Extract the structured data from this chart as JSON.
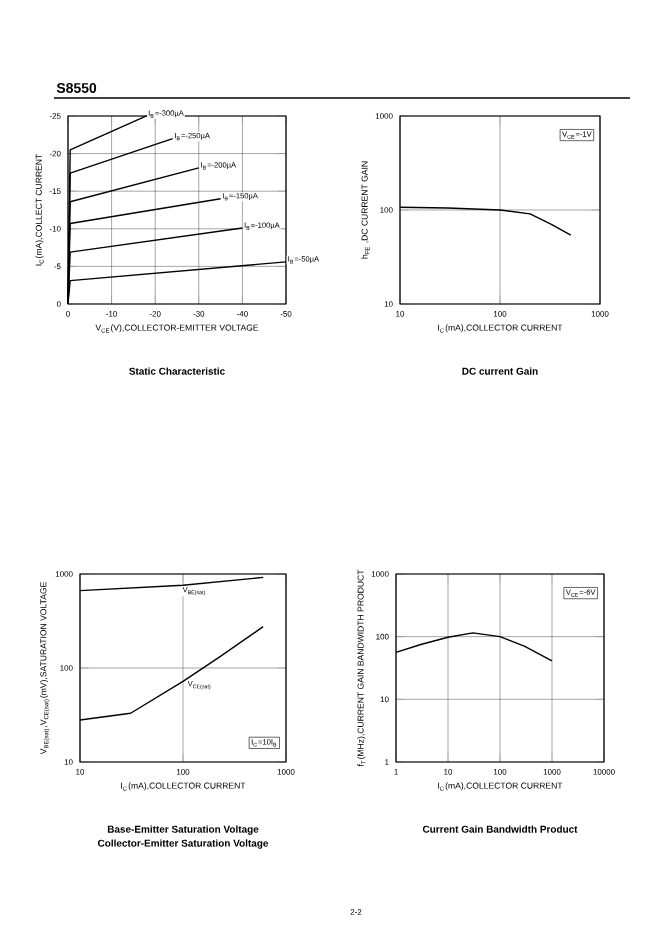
{
  "chart_data": [
    {
      "type": "line",
      "title": "Static Characteristic",
      "xlabel": "V$_{CE}$(V),COLLECTOR-EMITTER VOLTAGE",
      "ylabel": "I$_{C}$(mA),COLLECT CURRENT",
      "xlim": [
        0,
        -50
      ],
      "xticks": [
        0,
        -10,
        -20,
        -30,
        -40,
        -50
      ],
      "ylim": [
        0,
        -25
      ],
      "yticks": [
        0,
        -5,
        -10,
        -15,
        -20,
        -25
      ],
      "grid": true,
      "annotations": [
        "S8550"
      ],
      "series": [
        {
          "name": "I$_{B}$=-300µA",
          "color": "#000000",
          "x": [
            0,
            -0.5,
            -18
          ],
          "values": [
            0,
            -20.5,
            -25
          ]
        },
        {
          "name": "I$_{B}$=-250µA",
          "color": "#000000",
          "x": [
            0,
            -0.5,
            -24
          ],
          "values": [
            0,
            -17.4,
            -22
          ]
        },
        {
          "name": "I$_{B}$=-200µA",
          "color": "#000000",
          "x": [
            0,
            -0.5,
            -30
          ],
          "values": [
            0,
            -13.6,
            -18.1
          ]
        },
        {
          "name": "I$_{B}$=-150µA",
          "color": "#000000",
          "x": [
            0,
            -0.5,
            -35
          ],
          "values": [
            0,
            -10.7,
            -14
          ]
        },
        {
          "name": "I$_{B}$=-100µA",
          "color": "#000000",
          "x": [
            0,
            -0.5,
            -40
          ],
          "values": [
            0,
            -6.9,
            -10.1
          ]
        },
        {
          "name": "I$_{B}$=-50µA",
          "color": "#000000",
          "x": [
            0,
            -0.5,
            -50
          ],
          "values": [
            0,
            -3.1,
            -5.6
          ]
        }
      ]
    },
    {
      "type": "line",
      "title": "DC current Gain",
      "xlabel": "I$_{C}$(mA),COLLECTOR CURRENT",
      "ylabel": "h$_{FE}$ ,DC CURRENT GAIN",
      "log": "xy",
      "xlim": [
        10,
        1000
      ],
      "xticks": [
        10,
        100,
        1000
      ],
      "ylim": [
        10,
        1000
      ],
      "yticks": [
        10,
        100,
        1000
      ],
      "grid": true,
      "annotations": [
        "V$_{CE}$=-1V"
      ],
      "series": [
        {
          "color": "#000000",
          "x": [
            10,
            30,
            100,
            200,
            330,
            510
          ],
          "values": [
            107,
            105,
            100,
            91,
            70,
            54
          ]
        }
      ]
    },
    {
      "type": "line",
      "title": "Base-Emitter Saturation Voltage",
      "subtitle": "Collector-Emitter Saturation Voltage",
      "xlabel": "I$_{C}$(mA),COLLECTOR CURRENT",
      "ylabel": "V$_{BE(sat)}$,V$_{CE(sat)}$(mV),SATURATION VOLTAGE",
      "log": "xy",
      "xlim": [
        10,
        1000
      ],
      "xticks": [
        10,
        100,
        1000
      ],
      "ylim": [
        10,
        1000
      ],
      "yticks": [
        10,
        100,
        1000
      ],
      "grid": true,
      "annotations": [
        "I$_{C}$=10I$_{B}$"
      ],
      "series": [
        {
          "name": "V$_{BE(sat)}$",
          "color": "#000000",
          "x": [
            10,
            100,
            600
          ],
          "values": [
            665,
            760,
            920
          ]
        },
        {
          "name": "V$_{CE(sat)}$",
          "color": "#000000",
          "x": [
            10,
            31,
            100,
            229,
            600
          ],
          "values": [
            28,
            33,
            72,
            132,
            275
          ]
        }
      ]
    },
    {
      "type": "line",
      "title": "Current Gain Bandwidth Product",
      "xlabel": "I$_{C}$(mA),COLLECTOR CURRENT",
      "ylabel": "f$_{T}$(MHz),CURRENT GAIN BANDWIDTH PRODUCT",
      "log": "xy",
      "xlim": [
        1,
        10000
      ],
      "xticks": [
        1,
        10,
        100,
        1000,
        10000
      ],
      "ylim": [
        1,
        1000
      ],
      "yticks": [
        1,
        10,
        100,
        1000
      ],
      "grid": true,
      "annotations": [
        "V$_{CE}$=-6V",
        "2-2"
      ],
      "series": [
        {
          "color": "#000000",
          "x": [
            1,
            3,
            10,
            30,
            100,
            300,
            1000
          ],
          "values": [
            56,
            75,
            98,
            115,
            100,
            70,
            41
          ]
        }
      ]
    }
  ]
}
